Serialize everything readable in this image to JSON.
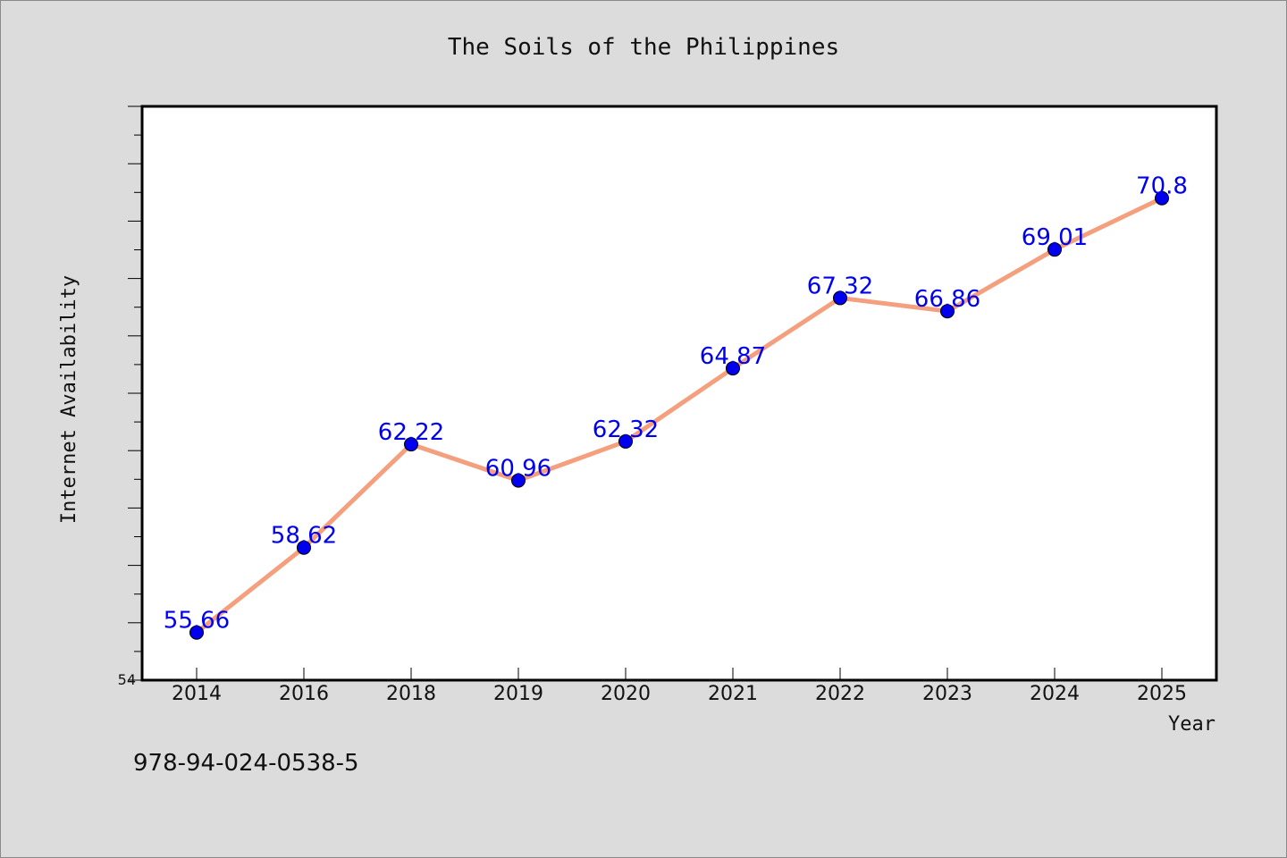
{
  "chart_data": {
    "type": "line",
    "title": "The Soils of the Philippines",
    "xlabel": "Year",
    "ylabel": "Internet Availability",
    "categories": [
      "2014",
      "2016",
      "2018",
      "2019",
      "2020",
      "2021",
      "2022",
      "2023",
      "2024",
      "2025"
    ],
    "series": [
      {
        "values": [
          55.66,
          58.62,
          62.22,
          60.96,
          62.32,
          64.87,
          67.32,
          66.86,
          69.01,
          70.8
        ],
        "labels": [
          "55.66",
          "58.62",
          "62.22",
          "60.96",
          "62.32",
          "64.87",
          "67.32",
          "66.86",
          "69.01",
          "70.8"
        ]
      }
    ],
    "ylim": [
      54,
      74
    ],
    "ytick_labels": [
      "54"
    ],
    "grid": false,
    "colors": {
      "line": "#f4a07e",
      "marker": "#0000ee",
      "label": "#0000ee",
      "plot_bg": "#ffffff",
      "page_bg": "#dcdcdc"
    }
  },
  "footer": {
    "isbn": "978-94-024-0538-5"
  }
}
